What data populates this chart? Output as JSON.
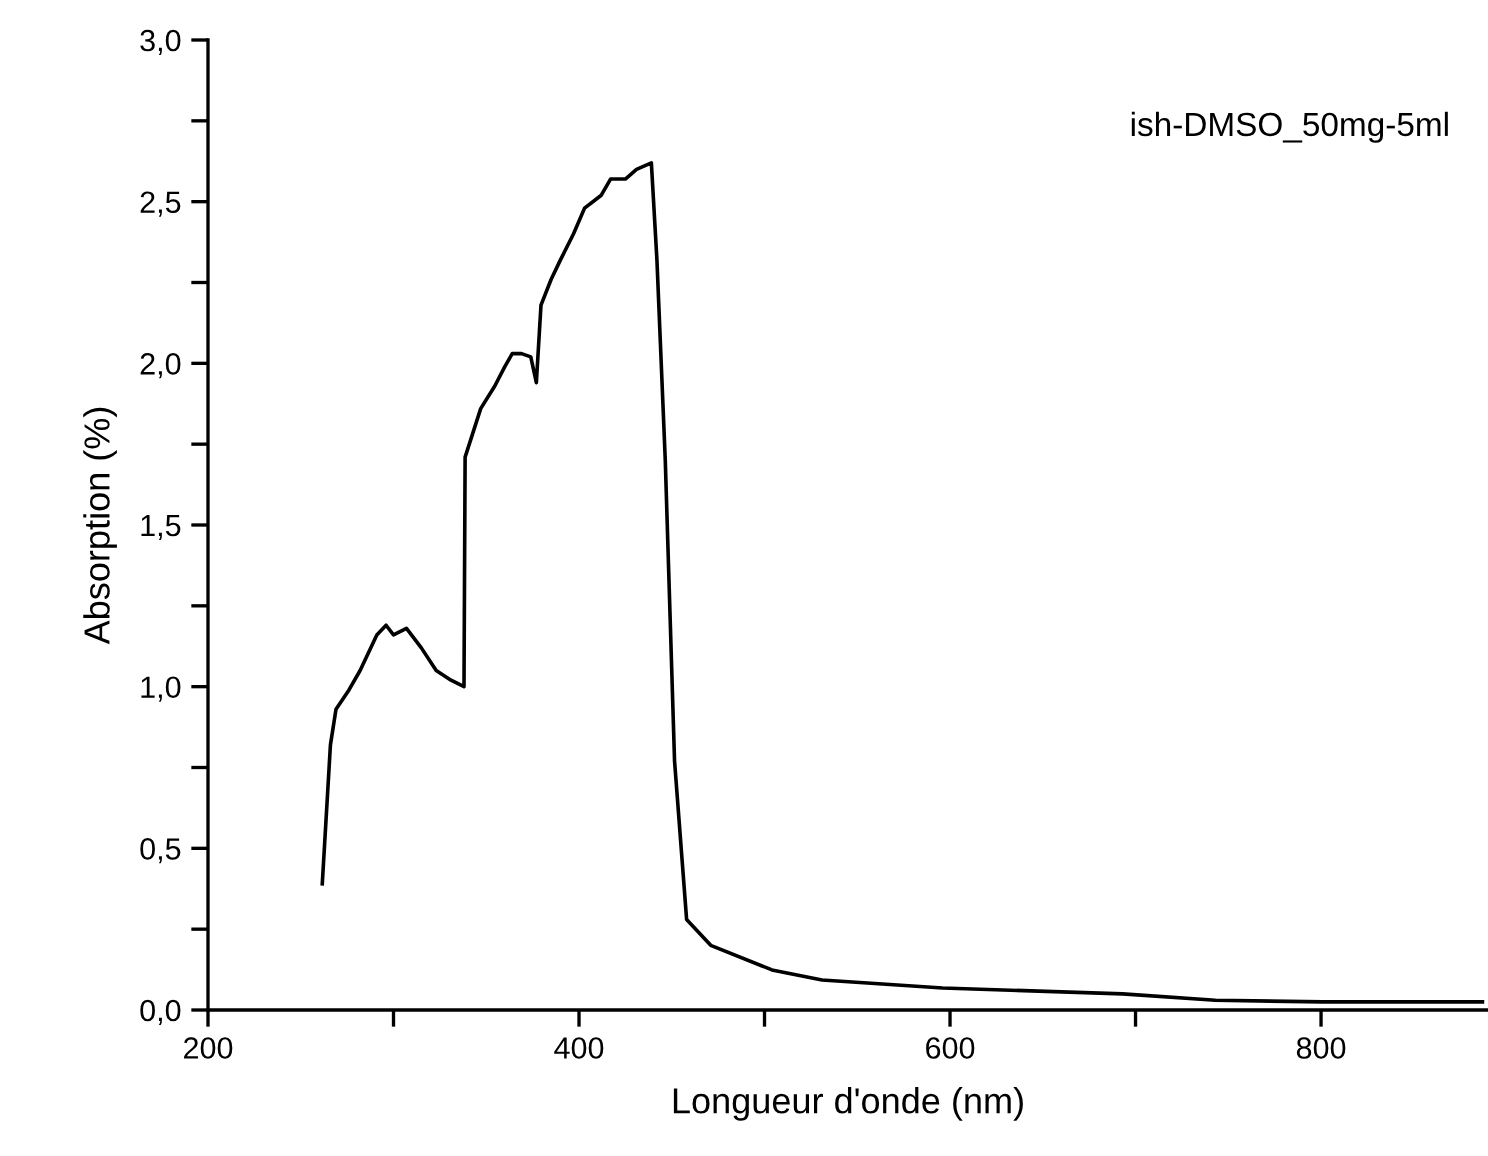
{
  "chart_data": {
    "type": "line",
    "xlabel": "Longueur d'onde (nm)",
    "ylabel": "Absorption (%)",
    "annotations": [
      "ish-DMSO_50mg-5ml"
    ],
    "xlim": [
      200,
      890
    ],
    "ylim": [
      0,
      3.0
    ],
    "xticks": [
      200,
      {
        "value": 300,
        "label": null
      },
      400,
      {
        "value": 500,
        "label": null
      },
      600,
      {
        "value": 700,
        "label": null
      },
      800
    ],
    "yticks": [
      {
        "value": 0,
        "label": "0,0"
      },
      {
        "value": 0.25,
        "label": null
      },
      {
        "value": 0.5,
        "label": "0,5"
      },
      {
        "value": 0.75,
        "label": null
      },
      {
        "value": 1.0,
        "label": "1,0"
      },
      {
        "value": 1.25,
        "label": null
      },
      {
        "value": 1.5,
        "label": "1,5"
      },
      {
        "value": 1.75,
        "label": null
      },
      {
        "value": 2.0,
        "label": "2,0"
      },
      {
        "value": 2.25,
        "label": null
      },
      {
        "value": 2.5,
        "label": "2,5"
      },
      {
        "value": 2.75,
        "label": null
      },
      {
        "value": 3.0,
        "label": "3,0"
      }
    ],
    "grid": false,
    "marker": "none",
    "line_style": "solid",
    "series": [
      {
        "color": "#000000",
        "x": [
          261.6,
          266,
          269,
          276,
          282,
          291,
          296,
          300,
          307,
          315,
          323,
          331,
          338,
          338.6,
          347,
          354.6,
          360,
          364,
          369,
          374,
          377,
          379.5,
          385,
          390,
          397,
          403,
          412,
          417,
          425,
          431,
          439,
          442,
          446.5,
          451.5,
          458,
          471,
          504,
          531,
          596,
          693,
          743,
          801,
          887
        ],
        "values": [
          0.39,
          0.82,
          0.93,
          0.99,
          1.05,
          1.16,
          1.19,
          1.16,
          1.18,
          1.12,
          1.05,
          1.02,
          1.0,
          1.71,
          1.86,
          1.93,
          1.99,
          2.03,
          2.03,
          2.02,
          1.94,
          2.18,
          2.26,
          2.32,
          2.4,
          2.48,
          2.52,
          2.57,
          2.57,
          2.6,
          2.62,
          2.32,
          1.7,
          0.77,
          0.28,
          0.2,
          0.124,
          0.093,
          0.068,
          0.05,
          0.03,
          0.025,
          0.025
        ]
      }
    ]
  }
}
